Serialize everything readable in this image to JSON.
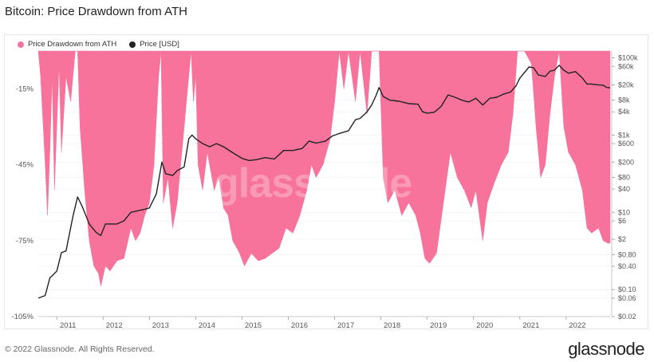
{
  "page": {
    "title": "Bitcoin: Price Drawdown from ATH",
    "footer": "© 2022 Glassnode. All Rights Reserved.",
    "brand": "glassnode",
    "watermark": "glassnode"
  },
  "colors": {
    "drawdown": "#f7739c",
    "price": "#222222",
    "grid": "#ececec",
    "axis_text": "#555555"
  },
  "chart_data": {
    "type": "area",
    "title": "Bitcoin: Price Drawdown from ATH",
    "legend": [
      "Price Drawdown from ATH",
      "Price [USD]"
    ],
    "legend_position": "top-left",
    "x_ticks": [
      "2011",
      "2012",
      "2013",
      "2014",
      "2015",
      "2016",
      "2017",
      "2018",
      "2019",
      "2020",
      "2021",
      "2022"
    ],
    "y_left_ticks": [
      "-15%",
      "-45%",
      "-75%",
      "-105%"
    ],
    "y_left_tick_values": [
      -15,
      -45,
      -75,
      -105
    ],
    "y_left_range": [
      -105,
      0
    ],
    "y_right_ticks": [
      "$100k",
      "$60k",
      "$20k",
      "$8k",
      "$4k",
      "$1k",
      "$600",
      "$200",
      "$80",
      "$40",
      "$10",
      "$6",
      "$2",
      "$0.80",
      "$0.40",
      "$0.10",
      "$0.06",
      "$0.02"
    ],
    "y_right_tick_values": [
      100000,
      60000,
      20000,
      8000,
      4000,
      1000,
      600,
      200,
      80,
      40,
      10,
      6,
      2,
      0.8,
      0.4,
      0.1,
      0.06,
      0.02
    ],
    "y_right_scale": "log",
    "y_right_range": [
      0.02,
      150000
    ],
    "x_range": [
      2010.6,
      2022.95
    ],
    "series": [
      {
        "name": "Price Drawdown from ATH",
        "axis": "left",
        "points": [
          [
            2010.6,
            0
          ],
          [
            2010.65,
            -10
          ],
          [
            2010.75,
            -45
          ],
          [
            2010.8,
            -65
          ],
          [
            2010.85,
            -40
          ],
          [
            2010.9,
            -10
          ],
          [
            2010.95,
            -55
          ],
          [
            2011.0,
            -30
          ],
          [
            2011.05,
            -5
          ],
          [
            2011.1,
            -40
          ],
          [
            2011.2,
            -10
          ],
          [
            2011.3,
            -20
          ],
          [
            2011.4,
            0
          ],
          [
            2011.45,
            0
          ],
          [
            2011.5,
            -30
          ],
          [
            2011.6,
            -55
          ],
          [
            2011.7,
            -75
          ],
          [
            2011.8,
            -85
          ],
          [
            2011.9,
            -88
          ],
          [
            2011.95,
            -93
          ],
          [
            2012.05,
            -85
          ],
          [
            2012.15,
            -87
          ],
          [
            2012.3,
            -83
          ],
          [
            2012.45,
            -82
          ],
          [
            2012.6,
            -70
          ],
          [
            2012.7,
            -75
          ],
          [
            2012.8,
            -72
          ],
          [
            2012.9,
            -65
          ],
          [
            2013.0,
            -60
          ],
          [
            2013.1,
            -45
          ],
          [
            2013.2,
            -10
          ],
          [
            2013.25,
            0
          ],
          [
            2013.3,
            -60
          ],
          [
            2013.4,
            -50
          ],
          [
            2013.5,
            -70
          ],
          [
            2013.6,
            -60
          ],
          [
            2013.7,
            -40
          ],
          [
            2013.8,
            -20
          ],
          [
            2013.9,
            0
          ],
          [
            2013.95,
            -20
          ],
          [
            2014.0,
            -10
          ],
          [
            2014.05,
            -45
          ],
          [
            2014.15,
            -55
          ],
          [
            2014.25,
            -40
          ],
          [
            2014.4,
            -55
          ],
          [
            2014.5,
            -50
          ],
          [
            2014.6,
            -62
          ],
          [
            2014.7,
            -65
          ],
          [
            2014.8,
            -75
          ],
          [
            2014.95,
            -80
          ],
          [
            2015.05,
            -85
          ],
          [
            2015.2,
            -80
          ],
          [
            2015.35,
            -83
          ],
          [
            2015.5,
            -82
          ],
          [
            2015.65,
            -80
          ],
          [
            2015.8,
            -78
          ],
          [
            2015.95,
            -70
          ],
          [
            2016.1,
            -72
          ],
          [
            2016.25,
            -65
          ],
          [
            2016.4,
            -55
          ],
          [
            2016.5,
            -45
          ],
          [
            2016.6,
            -50
          ],
          [
            2016.75,
            -45
          ],
          [
            2016.9,
            -35
          ],
          [
            2017.0,
            -20
          ],
          [
            2017.05,
            -10
          ],
          [
            2017.1,
            0
          ],
          [
            2017.2,
            -15
          ],
          [
            2017.3,
            0
          ],
          [
            2017.45,
            -20
          ],
          [
            2017.55,
            0
          ],
          [
            2017.7,
            -25
          ],
          [
            2017.8,
            0
          ],
          [
            2017.96,
            0
          ],
          [
            2018.05,
            -50
          ],
          [
            2018.15,
            -60
          ],
          [
            2018.3,
            -55
          ],
          [
            2018.45,
            -65
          ],
          [
            2018.6,
            -60
          ],
          [
            2018.75,
            -65
          ],
          [
            2018.85,
            -72
          ],
          [
            2018.95,
            -82
          ],
          [
            2019.05,
            -84
          ],
          [
            2019.2,
            -80
          ],
          [
            2019.35,
            -60
          ],
          [
            2019.5,
            -40
          ],
          [
            2019.65,
            -50
          ],
          [
            2019.8,
            -55
          ],
          [
            2019.95,
            -62
          ],
          [
            2020.05,
            -55
          ],
          [
            2020.2,
            -75
          ],
          [
            2020.3,
            -60
          ],
          [
            2020.45,
            -52
          ],
          [
            2020.6,
            -45
          ],
          [
            2020.75,
            -40
          ],
          [
            2020.85,
            -25
          ],
          [
            2020.95,
            0
          ],
          [
            2021.1,
            0
          ],
          [
            2021.25,
            -5
          ],
          [
            2021.35,
            -30
          ],
          [
            2021.45,
            -50
          ],
          [
            2021.55,
            -45
          ],
          [
            2021.65,
            -25
          ],
          [
            2021.75,
            -10
          ],
          [
            2021.85,
            0
          ],
          [
            2021.95,
            -30
          ],
          [
            2022.05,
            -40
          ],
          [
            2022.2,
            -45
          ],
          [
            2022.35,
            -55
          ],
          [
            2022.45,
            -70
          ],
          [
            2022.55,
            -72
          ],
          [
            2022.7,
            -70
          ],
          [
            2022.8,
            -75
          ],
          [
            2022.9,
            -76
          ],
          [
            2022.95,
            -76
          ]
        ]
      },
      {
        "name": "Price [USD]",
        "axis": "right",
        "points": [
          [
            2010.6,
            0.06
          ],
          [
            2010.75,
            0.07
          ],
          [
            2010.85,
            0.2
          ],
          [
            2011.0,
            0.3
          ],
          [
            2011.1,
            0.9
          ],
          [
            2011.2,
            1.0
          ],
          [
            2011.35,
            8
          ],
          [
            2011.45,
            25
          ],
          [
            2011.55,
            14
          ],
          [
            2011.7,
            5
          ],
          [
            2011.85,
            3
          ],
          [
            2011.95,
            2.5
          ],
          [
            2012.05,
            5
          ],
          [
            2012.3,
            5
          ],
          [
            2012.45,
            6
          ],
          [
            2012.6,
            10
          ],
          [
            2012.75,
            11
          ],
          [
            2012.9,
            12
          ],
          [
            2013.0,
            13
          ],
          [
            2013.15,
            30
          ],
          [
            2013.27,
            200
          ],
          [
            2013.35,
            100
          ],
          [
            2013.5,
            90
          ],
          [
            2013.6,
            120
          ],
          [
            2013.75,
            150
          ],
          [
            2013.85,
            800
          ],
          [
            2013.92,
            1000
          ],
          [
            2014.0,
            800
          ],
          [
            2014.15,
            600
          ],
          [
            2014.3,
            500
          ],
          [
            2014.45,
            600
          ],
          [
            2014.6,
            500
          ],
          [
            2014.8,
            350
          ],
          [
            2015.0,
            250
          ],
          [
            2015.15,
            220
          ],
          [
            2015.3,
            230
          ],
          [
            2015.5,
            260
          ],
          [
            2015.7,
            240
          ],
          [
            2015.9,
            400
          ],
          [
            2016.1,
            400
          ],
          [
            2016.3,
            450
          ],
          [
            2016.45,
            700
          ],
          [
            2016.6,
            620
          ],
          [
            2016.8,
            700
          ],
          [
            2016.95,
            950
          ],
          [
            2017.1,
            1100
          ],
          [
            2017.3,
            1300
          ],
          [
            2017.45,
            2500
          ],
          [
            2017.55,
            2700
          ],
          [
            2017.7,
            4000
          ],
          [
            2017.8,
            6000
          ],
          [
            2017.9,
            11000
          ],
          [
            2017.96,
            17000
          ],
          [
            2018.05,
            10000
          ],
          [
            2018.2,
            8000
          ],
          [
            2018.4,
            7500
          ],
          [
            2018.6,
            6500
          ],
          [
            2018.8,
            6300
          ],
          [
            2018.9,
            4000
          ],
          [
            2019.0,
            3700
          ],
          [
            2019.15,
            3900
          ],
          [
            2019.3,
            5500
          ],
          [
            2019.45,
            11000
          ],
          [
            2019.6,
            9500
          ],
          [
            2019.75,
            8000
          ],
          [
            2019.9,
            7200
          ],
          [
            2020.05,
            9000
          ],
          [
            2020.2,
            6000
          ],
          [
            2020.35,
            9000
          ],
          [
            2020.5,
            9500
          ],
          [
            2020.65,
            11500
          ],
          [
            2020.8,
            13000
          ],
          [
            2020.92,
            19000
          ],
          [
            2021.0,
            30000
          ],
          [
            2021.2,
            58000
          ],
          [
            2021.3,
            55000
          ],
          [
            2021.4,
            36000
          ],
          [
            2021.55,
            33000
          ],
          [
            2021.65,
            45000
          ],
          [
            2021.75,
            48000
          ],
          [
            2021.85,
            64000
          ],
          [
            2021.95,
            48000
          ],
          [
            2022.05,
            40000
          ],
          [
            2022.2,
            44000
          ],
          [
            2022.35,
            30000
          ],
          [
            2022.45,
            21000
          ],
          [
            2022.55,
            21000
          ],
          [
            2022.7,
            20000
          ],
          [
            2022.8,
            19500
          ],
          [
            2022.88,
            17000
          ],
          [
            2022.95,
            16800
          ]
        ]
      }
    ]
  }
}
